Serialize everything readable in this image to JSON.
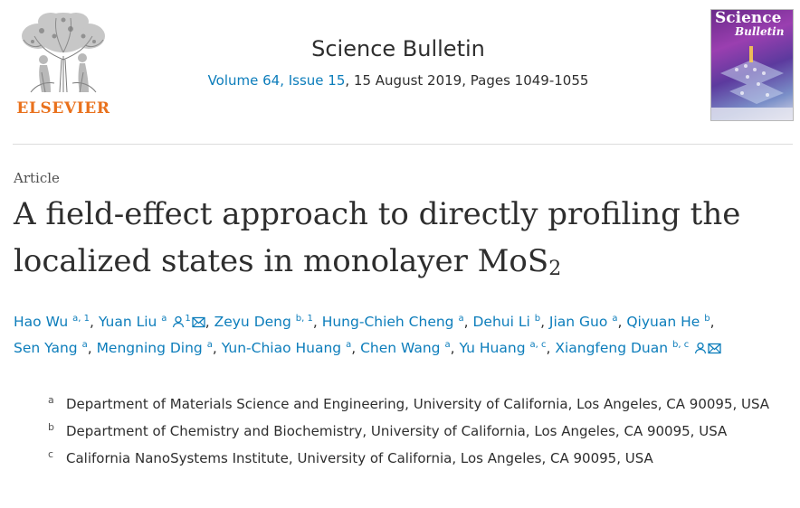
{
  "header": {
    "publisher": "ELSEVIER",
    "journal": "Science Bulletin",
    "volume_link": "Volume 64, Issue 15",
    "issue_rest": ", 15 August 2019, Pages 1049-1055",
    "cover": {
      "title_line1": "Science",
      "title_line2": "Bulletin"
    }
  },
  "article": {
    "type": "Article",
    "title_main": "A field-effect approach to directly profiling the localized states in monolayer MoS",
    "title_subscript": "2"
  },
  "authors": [
    {
      "name": "Hao Wu",
      "sup": "a, 1",
      "person_icon": false,
      "mail_icon": false,
      "sep": ", "
    },
    {
      "name": "Yuan Liu",
      "sup": "a",
      "person_icon": true,
      "person_sup": "1",
      "mail_icon": true,
      "sep": ", "
    },
    {
      "name": "Zeyu Deng",
      "sup": "b, 1",
      "person_icon": false,
      "mail_icon": false,
      "sep": ", "
    },
    {
      "name": "Hung-Chieh Cheng",
      "sup": "a",
      "person_icon": false,
      "mail_icon": false,
      "sep": ", "
    },
    {
      "name": "Dehui Li",
      "sup": "b",
      "person_icon": false,
      "mail_icon": false,
      "sep": ", "
    },
    {
      "name": "Jian Guo",
      "sup": "a",
      "person_icon": false,
      "mail_icon": false,
      "sep": ", "
    },
    {
      "name": "Qiyuan He",
      "sup": "b",
      "person_icon": false,
      "mail_icon": false,
      "sep": ", "
    },
    {
      "name": "Sen Yang",
      "sup": "a",
      "person_icon": false,
      "mail_icon": false,
      "sep": ", "
    },
    {
      "name": "Mengning Ding",
      "sup": "a",
      "person_icon": false,
      "mail_icon": false,
      "sep": ", "
    },
    {
      "name": "Yun-Chiao Huang",
      "sup": "a",
      "person_icon": false,
      "mail_icon": false,
      "sep": ", "
    },
    {
      "name": "Chen Wang",
      "sup": "a",
      "person_icon": false,
      "mail_icon": false,
      "sep": ", "
    },
    {
      "name": "Yu Huang",
      "sup": "a, c",
      "person_icon": false,
      "mail_icon": false,
      "sep": ", "
    },
    {
      "name": "Xiangfeng Duan",
      "sup": "b, c",
      "person_icon": true,
      "mail_icon": true,
      "sep": ""
    }
  ],
  "affiliations": [
    {
      "label": "a",
      "text": "Department of Materials Science and Engineering, University of California, Los Angeles, CA 90095, USA"
    },
    {
      "label": "b",
      "text": "Department of Chemistry and Biochemistry, University of California, Los Angeles, CA 90095, USA"
    },
    {
      "label": "c",
      "text": "California NanoSystems Institute, University of California, Los Angeles, CA 90095, USA"
    }
  ],
  "colors": {
    "link": "#0c7dbb",
    "publisher_orange": "#e9711c",
    "text": "#2e2e2e"
  },
  "icons": {
    "person": "person-icon",
    "mail": "mail-icon"
  }
}
